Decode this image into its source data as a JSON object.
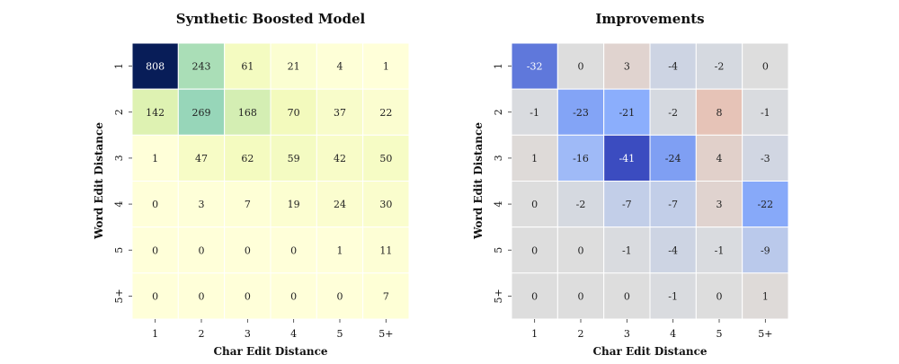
{
  "chart_data": [
    {
      "type": "heatmap",
      "title": "Synthetic Boosted Model",
      "xlabel": "Char Edit Distance",
      "ylabel": "Word Edit Distance",
      "x_categories": [
        "1",
        "2",
        "3",
        "4",
        "5",
        "5+"
      ],
      "y_categories": [
        "1",
        "2",
        "3",
        "4",
        "5",
        "5+"
      ],
      "values": [
        [
          808,
          243,
          61,
          21,
          4,
          1
        ],
        [
          142,
          269,
          168,
          70,
          37,
          22
        ],
        [
          1,
          47,
          62,
          59,
          42,
          50
        ],
        [
          0,
          3,
          7,
          19,
          24,
          30
        ],
        [
          0,
          0,
          0,
          0,
          1,
          11
        ],
        [
          0,
          0,
          0,
          0,
          0,
          7
        ]
      ],
      "colormap": "YlGnBu",
      "value_range": [
        0,
        808
      ],
      "colors": {
        "low": "#ffffd9",
        "high": "#081d58"
      }
    },
    {
      "type": "heatmap",
      "title": "Improvements",
      "xlabel": "Char Edit Distance",
      "ylabel": "Word Edit Distance",
      "x_categories": [
        "1",
        "2",
        "3",
        "4",
        "5",
        "5+"
      ],
      "y_categories": [
        "1",
        "2",
        "3",
        "4",
        "5",
        "5+"
      ],
      "values": [
        [
          -32,
          0,
          3,
          -4,
          -2,
          0
        ],
        [
          -1,
          -23,
          -21,
          -2,
          8,
          -1
        ],
        [
          1,
          -16,
          -41,
          -24,
          4,
          -3
        ],
        [
          0,
          -2,
          -7,
          -7,
          3,
          -22
        ],
        [
          0,
          0,
          -1,
          -4,
          -1,
          -9
        ],
        [
          0,
          0,
          0,
          -1,
          0,
          1
        ]
      ],
      "colormap": "coolwarm",
      "value_range": [
        -41,
        41
      ],
      "colors": {
        "negative": "#3b4cc0",
        "zero": "#dddddd",
        "positive": "#b40426"
      }
    }
  ]
}
